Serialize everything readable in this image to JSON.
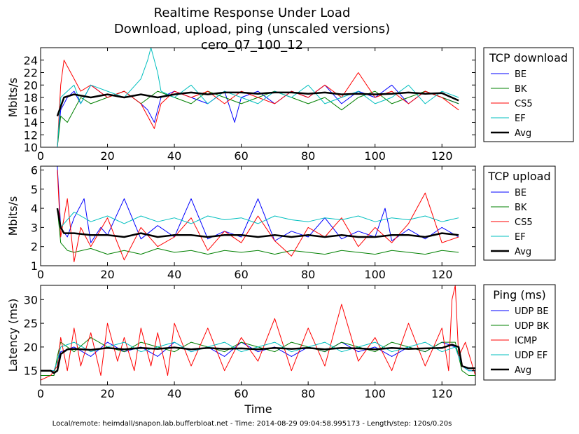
{
  "title_lines": [
    "Realtime Response Under Load",
    "Download, upload, ping (unscaled versions)",
    "cero_07_100_12"
  ],
  "footer": "Local/remote: heimdall/snapon.lab.bufferbloat.net - Time: 2014-08-29 09:04:58.995173 - Length/step: 120s/0.20s",
  "xlabel": "Time",
  "colors": {
    "blue": "#0000ff",
    "green": "#008000",
    "red": "#ff0000",
    "cyan": "#00bfbf",
    "black": "#000000"
  },
  "chart_data": [
    {
      "type": "line",
      "title": "TCP download",
      "ylabel": "Mbits/s",
      "xlim": [
        0,
        130
      ],
      "ylim": [
        10,
        26
      ],
      "xticks": [
        0,
        20,
        40,
        60,
        80,
        100,
        120
      ],
      "yticks": [
        10,
        12,
        14,
        16,
        18,
        20,
        22,
        24
      ],
      "legend": [
        "BE",
        "BK",
        "CS5",
        "EF",
        "Avg"
      ],
      "series": [
        {
          "name": "BE",
          "color": "blue",
          "x": [
            5,
            6,
            8,
            10,
            12,
            15,
            20,
            25,
            30,
            32,
            34,
            36,
            40,
            45,
            50,
            55,
            58,
            60,
            65,
            70,
            75,
            80,
            85,
            90,
            95,
            100,
            105,
            110,
            115,
            120,
            125
          ],
          "y": [
            10,
            16,
            18,
            19,
            17,
            20,
            18,
            19,
            17,
            16,
            14,
            18,
            19,
            18,
            17,
            19,
            14,
            18,
            19,
            17,
            19,
            18,
            20,
            17,
            19,
            18,
            20,
            17,
            19,
            18,
            17
          ]
        },
        {
          "name": "BK",
          "color": "green",
          "x": [
            5,
            6,
            8,
            10,
            12,
            15,
            20,
            25,
            30,
            35,
            40,
            45,
            50,
            55,
            60,
            65,
            70,
            75,
            80,
            85,
            90,
            95,
            100,
            105,
            110,
            115,
            120,
            125
          ],
          "y": [
            10,
            15,
            14,
            16,
            18,
            17,
            18,
            19,
            17,
            19,
            18,
            17,
            19,
            18,
            17,
            18,
            19,
            18,
            17,
            18,
            16,
            18,
            19,
            17,
            18,
            19,
            18,
            17
          ]
        },
        {
          "name": "CS5",
          "color": "red",
          "x": [
            5,
            6,
            7,
            8,
            9,
            10,
            12,
            15,
            20,
            25,
            30,
            32,
            34,
            36,
            40,
            45,
            50,
            55,
            60,
            65,
            70,
            75,
            80,
            85,
            90,
            95,
            100,
            105,
            110,
            115,
            120,
            125
          ],
          "y": [
            10,
            20,
            24,
            23,
            22,
            21,
            19,
            20,
            18,
            19,
            17,
            15,
            13,
            17,
            19,
            18,
            19,
            17,
            19,
            18,
            17,
            19,
            18,
            20,
            18,
            22,
            18,
            19,
            17,
            19,
            18,
            16
          ]
        },
        {
          "name": "EF",
          "color": "cyan",
          "x": [
            5,
            6,
            8,
            10,
            12,
            15,
            20,
            25,
            30,
            32,
            33,
            35,
            36,
            40,
            45,
            50,
            55,
            60,
            65,
            70,
            75,
            80,
            85,
            90,
            95,
            100,
            105,
            110,
            115,
            120,
            125
          ],
          "y": [
            10,
            18,
            19,
            20,
            17,
            20,
            19,
            18,
            21,
            24,
            26,
            22,
            19,
            18,
            20,
            17,
            19,
            18,
            17,
            19,
            18,
            20,
            17,
            18,
            19,
            17,
            18,
            20,
            17,
            19,
            18
          ]
        },
        {
          "name": "Avg",
          "color": "black",
          "x": [
            5,
            7,
            10,
            15,
            20,
            25,
            30,
            35,
            40,
            45,
            50,
            55,
            60,
            65,
            70,
            75,
            80,
            85,
            90,
            95,
            100,
            105,
            110,
            115,
            120,
            125
          ],
          "y": [
            15,
            18,
            18.5,
            18,
            18.5,
            18,
            18.5,
            18,
            18.5,
            18.8,
            18.5,
            18.8,
            18.8,
            18.6,
            18.8,
            18.8,
            18.6,
            18.8,
            18.5,
            18.6,
            18.5,
            18.6,
            18.8,
            18.6,
            18.7,
            17.5
          ]
        }
      ]
    },
    {
      "type": "line",
      "title": "TCP upload",
      "ylabel": "Mbits/s",
      "xlim": [
        0,
        130
      ],
      "ylim": [
        1,
        6.2
      ],
      "xticks": [
        0,
        20,
        40,
        60,
        80,
        100,
        120
      ],
      "yticks": [
        1,
        2,
        3,
        4,
        5,
        6
      ],
      "legend": [
        "BE",
        "BK",
        "CS5",
        "EF",
        "Avg"
      ],
      "series": [
        {
          "name": "BE",
          "color": "blue",
          "x": [
            5,
            6,
            8,
            10,
            13,
            15,
            18,
            20,
            25,
            30,
            35,
            40,
            45,
            50,
            55,
            60,
            65,
            70,
            75,
            80,
            85,
            90,
            95,
            100,
            103,
            105,
            110,
            115,
            120,
            125
          ],
          "y": [
            6.2,
            3,
            2.5,
            3.5,
            4.5,
            2.2,
            3,
            2.6,
            4.5,
            2.4,
            3.1,
            2.5,
            4.5,
            2.4,
            2.8,
            2.5,
            4.5,
            2.3,
            2.8,
            2.5,
            3.5,
            2.4,
            2.8,
            2.5,
            4,
            2.3,
            2.9,
            2.4,
            3,
            2.5
          ]
        },
        {
          "name": "BK",
          "color": "green",
          "x": [
            5,
            6,
            8,
            10,
            15,
            20,
            25,
            30,
            35,
            40,
            45,
            50,
            55,
            60,
            65,
            70,
            75,
            80,
            85,
            90,
            95,
            100,
            105,
            110,
            115,
            120,
            125
          ],
          "y": [
            4,
            2.2,
            1.8,
            1.7,
            1.9,
            1.6,
            1.8,
            1.6,
            1.9,
            1.7,
            1.8,
            1.6,
            1.8,
            1.7,
            1.8,
            1.6,
            1.8,
            1.7,
            1.6,
            1.8,
            1.7,
            1.6,
            1.8,
            1.7,
            1.6,
            1.8,
            1.7
          ]
        },
        {
          "name": "CS5",
          "color": "red",
          "x": [
            5,
            6,
            8,
            10,
            12,
            15,
            20,
            25,
            30,
            35,
            40,
            45,
            50,
            55,
            60,
            65,
            70,
            75,
            80,
            85,
            90,
            95,
            100,
            105,
            110,
            115,
            120,
            125
          ],
          "y": [
            6,
            2.5,
            4.5,
            1.2,
            3,
            2,
            3.5,
            1.3,
            3,
            2,
            2.5,
            3.5,
            1.8,
            2.8,
            2.2,
            3.6,
            2.3,
            1.5,
            3,
            2.5,
            3.5,
            2,
            3,
            2.2,
            3.2,
            4.8,
            2.2,
            2.5
          ]
        },
        {
          "name": "EF",
          "color": "cyan",
          "x": [
            5,
            6,
            8,
            10,
            15,
            20,
            25,
            30,
            35,
            40,
            45,
            50,
            55,
            60,
            65,
            70,
            75,
            80,
            85,
            90,
            95,
            100,
            105,
            110,
            115,
            120,
            125
          ],
          "y": [
            4,
            3,
            3.4,
            3.8,
            3.3,
            3.6,
            3.2,
            3.6,
            3.3,
            3.5,
            3.2,
            3.6,
            3.4,
            3.5,
            3.2,
            3.6,
            3.4,
            3.3,
            3.5,
            3.4,
            3.6,
            3.3,
            3.5,
            3.4,
            3.6,
            3.3,
            3.5
          ]
        },
        {
          "name": "Avg",
          "color": "black",
          "x": [
            5,
            6,
            7,
            10,
            15,
            20,
            25,
            30,
            35,
            40,
            45,
            50,
            55,
            60,
            65,
            70,
            75,
            80,
            85,
            90,
            95,
            100,
            105,
            110,
            115,
            120,
            125
          ],
          "y": [
            4,
            3,
            2.7,
            2.7,
            2.6,
            2.6,
            2.5,
            2.7,
            2.5,
            2.6,
            2.6,
            2.5,
            2.6,
            2.6,
            2.5,
            2.6,
            2.5,
            2.6,
            2.5,
            2.6,
            2.5,
            2.5,
            2.6,
            2.6,
            2.5,
            2.7,
            2.6
          ]
        }
      ]
    },
    {
      "type": "line",
      "title": "Ping (ms)",
      "ylabel": "Latency (ms)",
      "xlim": [
        0,
        130
      ],
      "ylim": [
        12,
        33
      ],
      "xticks": [
        0,
        20,
        40,
        60,
        80,
        100,
        120
      ],
      "yticks": [
        15,
        20,
        25,
        30
      ],
      "legend": [
        "UDP BE",
        "UDP BK",
        "ICMP",
        "UDP EF",
        "Avg"
      ],
      "series": [
        {
          "name": "UDP BE",
          "color": "blue",
          "x": [
            0,
            4,
            5,
            6,
            10,
            15,
            20,
            25,
            30,
            35,
            40,
            45,
            50,
            55,
            60,
            65,
            70,
            75,
            80,
            85,
            90,
            95,
            100,
            105,
            110,
            115,
            120,
            124,
            126,
            128,
            130
          ],
          "y": [
            15,
            15,
            17,
            19,
            20,
            18,
            21,
            19,
            20,
            18,
            21,
            19,
            20,
            18,
            21,
            19,
            20,
            18,
            20,
            19,
            21,
            19,
            20,
            18,
            20,
            19,
            21,
            20,
            16,
            15,
            15
          ]
        },
        {
          "name": "UDP BK",
          "color": "green",
          "x": [
            0,
            4,
            5,
            6,
            10,
            15,
            20,
            25,
            30,
            35,
            40,
            45,
            50,
            55,
            60,
            65,
            70,
            75,
            80,
            85,
            90,
            95,
            100,
            105,
            110,
            115,
            120,
            124,
            126,
            128,
            130
          ],
          "y": [
            14,
            14,
            18,
            21,
            19,
            22,
            20,
            19,
            21,
            20,
            19,
            21,
            20,
            19,
            21,
            20,
            19,
            21,
            20,
            19,
            21,
            20,
            19,
            21,
            20,
            19,
            21,
            21,
            15,
            14,
            14
          ]
        },
        {
          "name": "ICMP",
          "color": "red",
          "x": [
            0,
            3,
            5,
            6,
            8,
            10,
            12,
            15,
            18,
            20,
            23,
            25,
            28,
            30,
            33,
            35,
            38,
            40,
            45,
            50,
            55,
            60,
            65,
            70,
            75,
            80,
            85,
            90,
            95,
            100,
            105,
            110,
            115,
            120,
            122,
            123,
            124,
            125,
            127,
            130
          ],
          "y": [
            13,
            14,
            16,
            22,
            15,
            24,
            16,
            23,
            14,
            25,
            17,
            22,
            15,
            24,
            16,
            23,
            14,
            25,
            16,
            24,
            15,
            22,
            17,
            26,
            15,
            24,
            16,
            29,
            17,
            22,
            15,
            25,
            16,
            24,
            15,
            30,
            33,
            18,
            21,
            14
          ]
        },
        {
          "name": "UDP EF",
          "color": "cyan",
          "x": [
            0,
            4,
            5,
            6,
            10,
            15,
            20,
            25,
            30,
            35,
            40,
            45,
            50,
            55,
            60,
            65,
            70,
            75,
            80,
            85,
            90,
            95,
            100,
            105,
            110,
            115,
            120,
            124,
            126,
            128,
            130
          ],
          "y": [
            15,
            15,
            17,
            20,
            21,
            19,
            20,
            21,
            19,
            20,
            21,
            19,
            20,
            21,
            19,
            20,
            21,
            19,
            20,
            21,
            19,
            20,
            21,
            19,
            20,
            21,
            19,
            20,
            16,
            15,
            15
          ]
        },
        {
          "name": "Avg",
          "color": "black",
          "x": [
            0,
            3,
            4,
            5,
            6,
            8,
            10,
            15,
            20,
            25,
            30,
            35,
            40,
            45,
            50,
            55,
            60,
            65,
            70,
            75,
            80,
            85,
            90,
            95,
            100,
            105,
            110,
            115,
            120,
            123,
            125,
            126,
            128,
            130
          ],
          "y": [
            15,
            15,
            14.5,
            15,
            18.5,
            19.5,
            19.6,
            19.4,
            19.8,
            19.5,
            19.8,
            19.6,
            19.9,
            19.5,
            19.8,
            19.6,
            19.7,
            19.5,
            19.8,
            19.6,
            19.8,
            19.5,
            19.8,
            19.7,
            19.5,
            19.8,
            19.6,
            19.7,
            19.8,
            20.5,
            20,
            16,
            15.5,
            15.5
          ]
        }
      ]
    }
  ]
}
